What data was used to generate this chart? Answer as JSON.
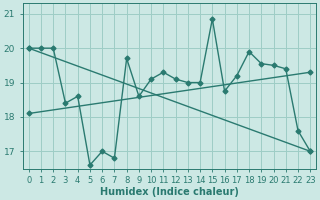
{
  "xlabel": "Humidex (Indice chaleur)",
  "bg_color": "#cce8e4",
  "grid_color": "#9ecdc6",
  "line_color": "#2a7a70",
  "xlim_min": -0.5,
  "xlim_max": 23.5,
  "ylim_min": 16.5,
  "ylim_max": 21.3,
  "xticks": [
    0,
    1,
    2,
    3,
    4,
    5,
    6,
    7,
    8,
    9,
    10,
    11,
    12,
    13,
    14,
    15,
    16,
    17,
    18,
    19,
    20,
    21,
    22,
    23
  ],
  "yticks": [
    17,
    18,
    19,
    20,
    21
  ],
  "series1_x": [
    0,
    1,
    2,
    3,
    4,
    5,
    6,
    7,
    8,
    9,
    10,
    11,
    12,
    13,
    14,
    15,
    16,
    17,
    18,
    19,
    20,
    21,
    22,
    23
  ],
  "series1_y": [
    20.0,
    20.0,
    20.0,
    18.4,
    18.6,
    16.6,
    17.0,
    16.8,
    19.7,
    18.6,
    19.1,
    19.3,
    19.1,
    19.0,
    19.0,
    20.85,
    18.75,
    19.2,
    19.9,
    19.55,
    19.5,
    19.4,
    17.6,
    17.0
  ],
  "series2_x": [
    0,
    23
  ],
  "series2_y": [
    20.0,
    17.0
  ],
  "series3_x": [
    0,
    23
  ],
  "series3_y": [
    18.1,
    19.3
  ],
  "markersize": 2.5,
  "linewidth": 1.0,
  "tick_fontsize": 6.0,
  "xlabel_fontsize": 7.0
}
